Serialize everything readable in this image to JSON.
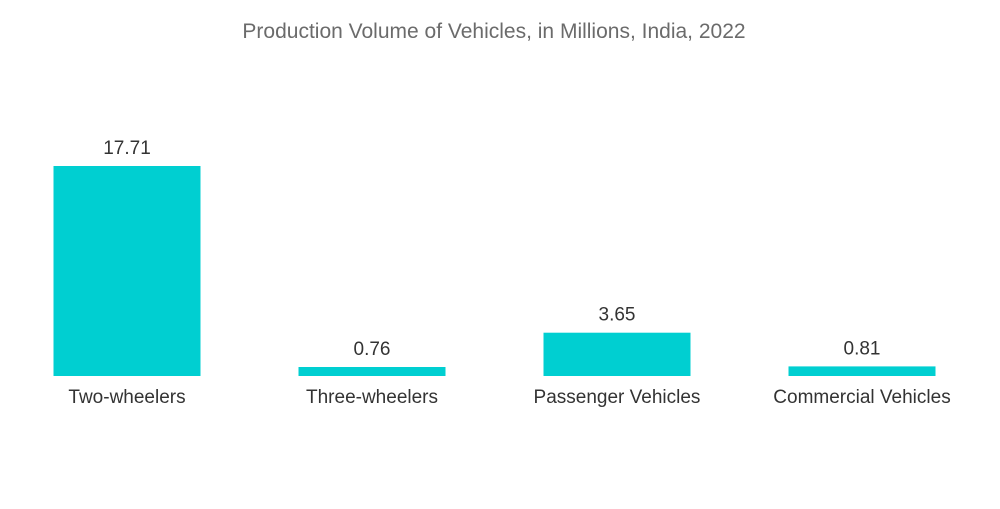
{
  "chart_data": {
    "type": "bar",
    "title": "Production Volume of Vehicles, in Millions, India, 2022",
    "categories": [
      "Two-wheelers",
      "Three-wheelers",
      "Passenger Vehicles",
      "Commercial Vehicles"
    ],
    "values": [
      17.71,
      0.76,
      3.65,
      0.81
    ],
    "value_labels": [
      "17.71",
      "0.76",
      "3.65",
      "0.81"
    ],
    "xlabel": "",
    "ylabel": "",
    "ylim": [
      0,
      17.71
    ],
    "grid": false,
    "legend": "none",
    "bar_color": "#00cfd1"
  }
}
